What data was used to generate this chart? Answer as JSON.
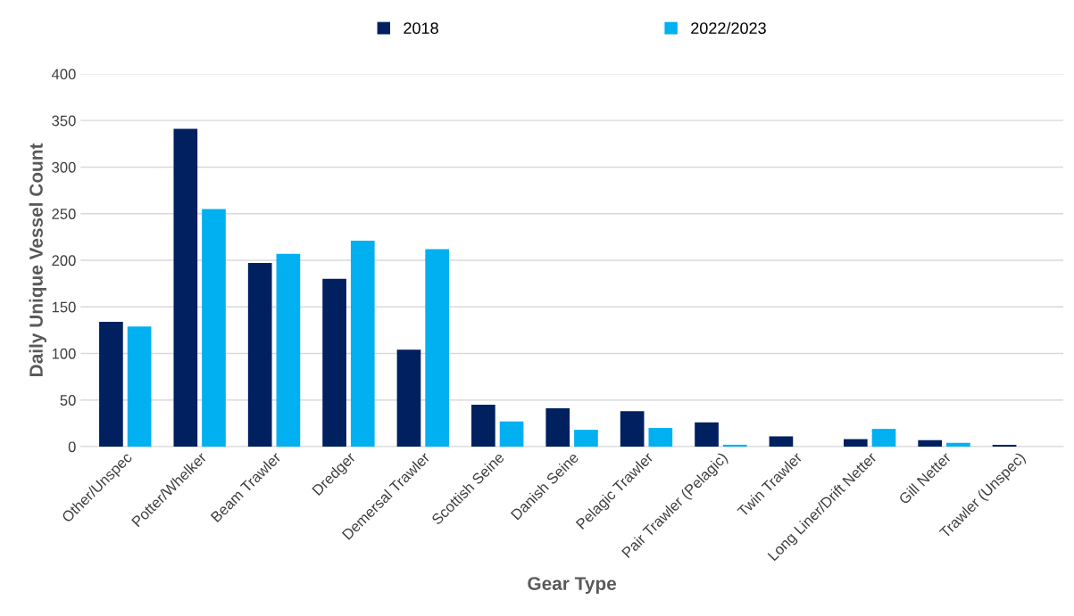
{
  "chart_data": {
    "type": "bar",
    "xlabel": "Gear Type",
    "ylabel": "Daily Unique Vessel Count",
    "categories": [
      "Other/Unspec",
      "Potter/Whelker",
      "Beam Trawler",
      "Dredger",
      "Demersal Trawler",
      "Scottish Seine",
      "Danish Seine",
      "Pelagic Trawler",
      "Pair Trawler (Pelagic)",
      "Twin Trawler",
      "Long Liner/Drift Netter",
      "Gill Netter",
      "Trawler (Unspec)"
    ],
    "series": [
      {
        "name": "2018",
        "color": "#002060",
        "values": [
          134,
          341,
          197,
          180,
          104,
          45,
          41,
          38,
          26,
          11,
          8,
          7,
          2
        ]
      },
      {
        "name": "2022/2023",
        "color": "#00b0f0",
        "values": [
          129,
          255,
          207,
          221,
          212,
          27,
          18,
          20,
          2,
          0,
          19,
          4,
          0
        ]
      }
    ],
    "ylim": [
      0,
      400
    ],
    "yticks": [
      0,
      50,
      100,
      150,
      200,
      250,
      300,
      350,
      400
    ],
    "grid": "y",
    "legend": "top"
  }
}
